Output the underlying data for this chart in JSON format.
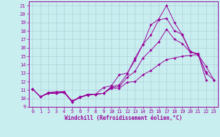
{
  "xlabel": "Windchill (Refroidissement éolien,°C)",
  "bg_color": "#c8eef0",
  "grid_color": "#b0d0d8",
  "line_color": "#990099",
  "xlim": [
    -0.5,
    23.5
  ],
  "ylim": [
    9,
    21.5
  ],
  "xticks": [
    0,
    1,
    2,
    3,
    4,
    5,
    6,
    7,
    8,
    9,
    10,
    11,
    12,
    13,
    14,
    15,
    16,
    17,
    18,
    19,
    20,
    21,
    22,
    23
  ],
  "yticks": [
    9,
    10,
    11,
    12,
    13,
    14,
    15,
    16,
    17,
    18,
    19,
    20,
    21
  ],
  "curves": [
    {
      "x": [
        0,
        1,
        2,
        3,
        4,
        5,
        6,
        7,
        8,
        9,
        10,
        11,
        12,
        13,
        14,
        15,
        16,
        17,
        18,
        19,
        20,
        21,
        22
      ],
      "y": [
        11.1,
        10.2,
        10.7,
        10.8,
        10.8,
        9.6,
        10.1,
        10.4,
        10.5,
        10.6,
        11.4,
        11.6,
        12.9,
        14.8,
        16.4,
        18.7,
        19.4,
        21.0,
        19.0,
        17.5,
        15.5,
        15.3,
        12.2
      ]
    },
    {
      "x": [
        0,
        1,
        2,
        3,
        4,
        5,
        6,
        7,
        8,
        9,
        10,
        11,
        12,
        13,
        14,
        15,
        16,
        17,
        18,
        19,
        20,
        21,
        22
      ],
      "y": [
        11.1,
        10.2,
        10.6,
        10.7,
        10.7,
        9.6,
        10.2,
        10.4,
        10.5,
        11.3,
        11.5,
        12.8,
        13.0,
        14.5,
        16.4,
        17.5,
        19.3,
        19.5,
        18.0,
        17.6,
        15.6,
        15.2,
        13.1
      ]
    },
    {
      "x": [
        0,
        1,
        2,
        3,
        4,
        5,
        6,
        7,
        8,
        9,
        10,
        11,
        12,
        13,
        14,
        15,
        16,
        17,
        18,
        19,
        20,
        21,
        22,
        23
      ],
      "y": [
        11.1,
        10.2,
        10.6,
        10.6,
        10.8,
        9.7,
        10.1,
        10.5,
        10.5,
        10.6,
        11.3,
        11.4,
        12.5,
        13.2,
        14.8,
        15.7,
        16.7,
        18.2,
        17.0,
        16.5,
        15.5,
        15.2,
        13.0,
        12.2
      ]
    },
    {
      "x": [
        0,
        1,
        2,
        3,
        4,
        5,
        6,
        7,
        8,
        9,
        10,
        11,
        12,
        13,
        14,
        15,
        16,
        17,
        18,
        19,
        20,
        21,
        22,
        23
      ],
      "y": [
        11.1,
        10.2,
        10.6,
        10.6,
        10.7,
        9.7,
        10.1,
        10.5,
        10.5,
        10.6,
        11.2,
        11.2,
        11.9,
        12.0,
        12.8,
        13.3,
        14.0,
        14.6,
        14.8,
        15.0,
        15.1,
        15.2,
        13.8,
        12.2
      ]
    }
  ]
}
